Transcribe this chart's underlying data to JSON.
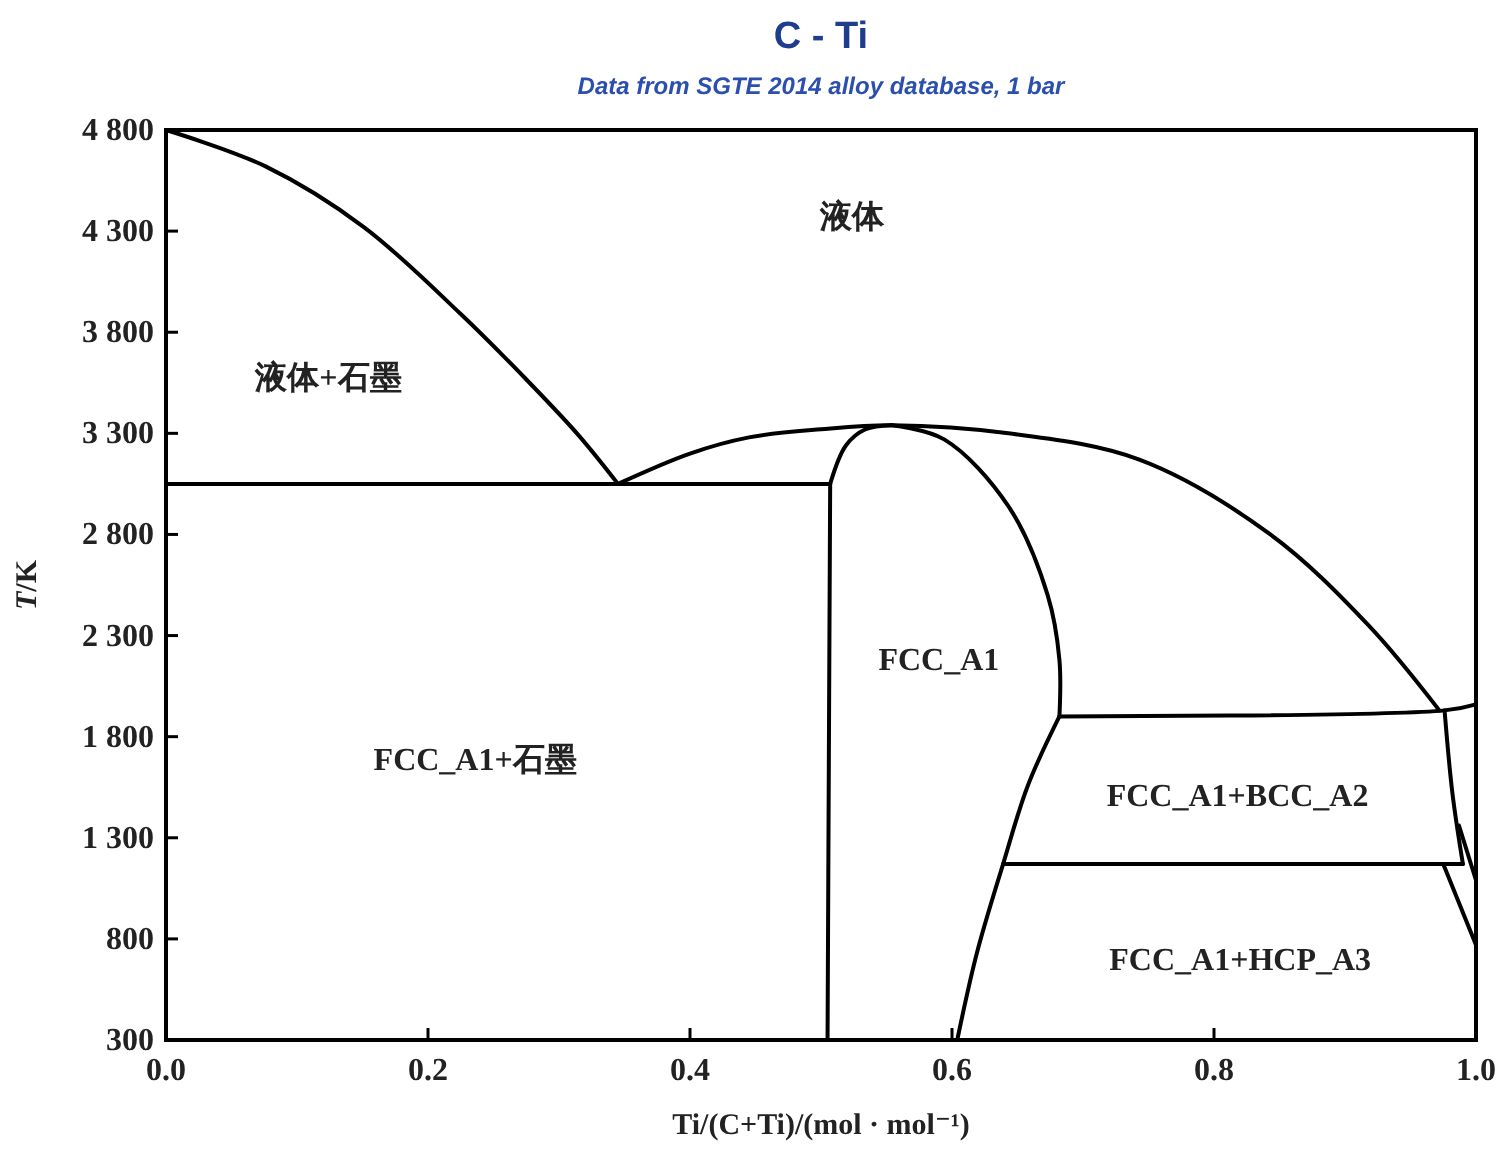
{
  "chart_data": {
    "type": "line",
    "title": "C - Ti",
    "subtitle": "Data from SGTE 2014 alloy database, 1 bar",
    "xlabel": "Ti/(C+Ti)/(mol · mol⁻¹)",
    "ylabel": "T/K",
    "xlim": [
      0,
      1
    ],
    "ylim": [
      300,
      4800
    ],
    "xticks": [
      {
        "value": 0,
        "label": "0.0"
      },
      0.2,
      0.4,
      0.6,
      0.8,
      {
        "value": 1,
        "label": "1.0"
      }
    ],
    "yticks": [
      300,
      800,
      {
        "value": 1300,
        "label": "1 300"
      },
      {
        "value": 1800,
        "label": "1 800"
      },
      {
        "value": 2300,
        "label": "2 300"
      },
      {
        "value": 2800,
        "label": "2 800"
      },
      {
        "value": 3300,
        "label": "3 300"
      },
      {
        "value": 3800,
        "label": "3 800"
      },
      {
        "value": 4300,
        "label": "4 300"
      },
      {
        "value": 4800,
        "label": "4 800"
      }
    ],
    "grid": false,
    "marker": "none",
    "line_style": "solid",
    "series": [
      {
        "color": "#000000",
        "x": [
          0,
          0.076,
          0.151,
          0.225,
          0.276,
          0.315,
          0.345
        ],
        "values": [
          4800,
          4620,
          4320,
          3890,
          3560,
          3290,
          3050
        ]
      },
      {
        "color": "#000000",
        "x": [
          0,
          0.345,
          0.507
        ],
        "values": [
          3050,
          3050,
          3050
        ]
      },
      {
        "color": "#000000",
        "x": [
          0.345,
          0.4,
          0.445,
          0.5,
          0.554,
          0.643,
          0.743,
          0.843,
          0.918,
          0.972
        ],
        "values": [
          3050,
          3200,
          3280,
          3320,
          3340,
          3300,
          3170,
          2800,
          2350,
          1930
        ]
      },
      {
        "color": "#000000",
        "x": [
          0.507,
          0.506,
          0.505
        ],
        "values": [
          3050,
          1700,
          300
        ]
      },
      {
        "color": "#000000",
        "x": [
          0.507,
          0.519,
          0.534,
          0.554
        ],
        "values": [
          3050,
          3240,
          3320,
          3340
        ]
      },
      {
        "color": "#000000",
        "x": [
          0.554,
          0.594,
          0.643,
          0.673,
          0.682,
          0.682
        ],
        "values": [
          3340,
          3270,
          2940,
          2500,
          2180,
          1900
        ]
      },
      {
        "color": "#000000",
        "x": [
          0.682,
          0.976,
          1
        ],
        "values": [
          1900,
          1930,
          1960
        ]
      },
      {
        "color": "#000000",
        "x": [
          0.682,
          0.658,
          0.639,
          0.619,
          0.604
        ],
        "values": [
          1900,
          1560,
          1170,
          730,
          300
        ]
      },
      {
        "color": "#000000",
        "x": [
          0.639,
          0.99
        ],
        "values": [
          1170,
          1170
        ]
      },
      {
        "color": "#000000",
        "x": [
          0.976,
          0.982,
          0.99
        ],
        "values": [
          1930,
          1520,
          1170
        ]
      },
      {
        "color": "#000000",
        "x": [
          0.987,
          1
        ],
        "values": [
          1360,
          1090
        ]
      },
      {
        "color": "#000000",
        "x": [
          0.975,
          1
        ],
        "values": [
          1170,
          770
        ]
      }
    ],
    "annotations": [
      "液体",
      "液体+石墨",
      "FCC_A1",
      "FCC_A1+石墨",
      "FCC_A1+BCC_A2",
      "FCC_A1+HCP_A3"
    ]
  }
}
